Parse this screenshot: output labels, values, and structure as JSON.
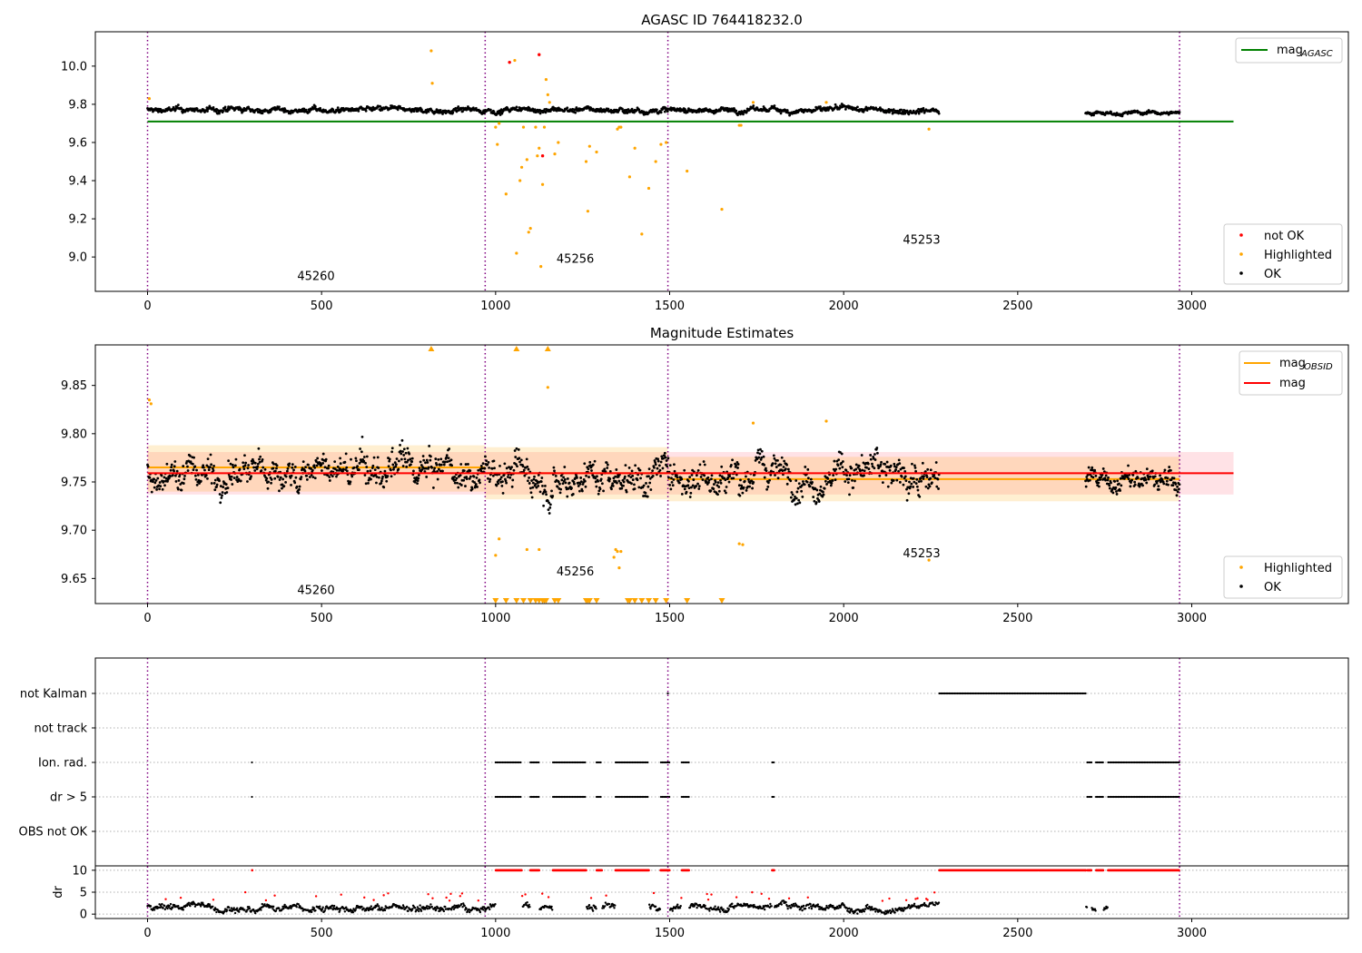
{
  "chart_data": [
    {
      "type": "scatter",
      "title": "AGASC ID 764418232.0",
      "xlim": [
        -150,
        3450
      ],
      "ylim": [
        8.82,
        10.18
      ],
      "xticks": [
        0,
        500,
        1000,
        1500,
        2000,
        2500,
        3000
      ],
      "yticks": [
        9.0,
        9.2,
        9.4,
        9.6,
        9.8,
        10.0
      ],
      "ytick_labels": [
        "9.0",
        "9.2",
        "9.4",
        "9.6",
        "9.8",
        "10.0"
      ],
      "obsid_boundaries": [
        0,
        970,
        1495,
        2965
      ],
      "obsid_labels": [
        {
          "text": "45260",
          "x": 430,
          "y": 8.88
        },
        {
          "text": "45256",
          "x": 1175,
          "y": 8.97
        },
        {
          "text": "45253",
          "x": 2170,
          "y": 9.07
        }
      ],
      "reference_line": {
        "name": "mag_AGASC",
        "y": 9.71,
        "x_range": [
          0,
          3120
        ],
        "color": "#008000"
      },
      "ok_series": {
        "name": "OK",
        "color": "#000000",
        "segments": [
          {
            "x_start": 0,
            "x_end": 2275,
            "level": 9.77,
            "spread": 0.018
          },
          {
            "x_start": 2695,
            "x_end": 2965,
            "level": 9.755,
            "spread": 0.012
          }
        ]
      },
      "highlighted": {
        "name": "Highlighted",
        "color": "#ffa500",
        "x": [
          5,
          815,
          818,
          1000,
          1005,
          1010,
          1030,
          1055,
          1060,
          1070,
          1075,
          1080,
          1090,
          1095,
          1100,
          1115,
          1120,
          1125,
          1130,
          1135,
          1140,
          1145,
          1150,
          1155,
          1170,
          1180,
          1260,
          1265,
          1270,
          1290,
          1350,
          1355,
          1360,
          1385,
          1400,
          1420,
          1440,
          1460,
          1475,
          1490,
          1550,
          1650,
          1700,
          1705,
          1740,
          1950,
          2245
        ],
        "y": [
          9.83,
          10.08,
          9.91,
          9.68,
          9.59,
          9.7,
          9.33,
          10.03,
          9.02,
          9.4,
          9.47,
          9.68,
          9.51,
          9.13,
          9.15,
          9.68,
          9.53,
          9.57,
          8.95,
          9.38,
          9.68,
          9.93,
          9.85,
          9.81,
          9.54,
          9.6,
          9.5,
          9.24,
          9.58,
          9.55,
          9.67,
          9.68,
          9.68,
          9.42,
          9.57,
          9.12,
          9.36,
          9.5,
          9.59,
          9.6,
          9.45,
          9.25,
          9.69,
          9.69,
          9.81,
          9.81,
          9.67
        ]
      },
      "not_ok": {
        "name": "not OK",
        "color": "#ff0000",
        "x": [
          1040,
          1125,
          1135
        ],
        "y": [
          10.02,
          10.06,
          9.53
        ]
      },
      "legend_lines": {
        "placement": "upper right",
        "entries": [
          "mag",
          "AGASC"
        ]
      },
      "legend_points": {
        "placement": "lower right",
        "entries": [
          "not OK",
          "Highlighted",
          "OK"
        ]
      }
    },
    {
      "type": "scatter",
      "title": "Magnitude Estimates",
      "xlim": [
        -150,
        3450
      ],
      "ylim": [
        9.624,
        9.892
      ],
      "xticks": [
        0,
        500,
        1000,
        1500,
        2000,
        2500,
        3000
      ],
      "yticks": [
        9.65,
        9.7,
        9.75,
        9.8,
        9.85
      ],
      "ytick_labels": [
        "9.65",
        "9.70",
        "9.75",
        "9.80",
        "9.85"
      ],
      "obsid_boundaries": [
        0,
        970,
        1495,
        2965
      ],
      "obsid_labels": [
        {
          "text": "45260",
          "x": 430,
          "y": 9.634
        },
        {
          "text": "45256",
          "x": 1175,
          "y": 9.653
        },
        {
          "text": "45253",
          "x": 2170,
          "y": 9.672
        }
      ],
      "mag_line": {
        "name": "mag",
        "y": 9.759,
        "band": [
          9.737,
          9.781
        ],
        "x_range": [
          0,
          3120
        ],
        "line_color": "#ff0000",
        "band_color": "#ffb6c1"
      },
      "mag_obsid": [
        {
          "x_range": [
            0,
            970
          ],
          "y": 9.765,
          "band": [
            9.74,
            9.788
          ],
          "color": "#ffa500"
        },
        {
          "x_range": [
            970,
            1495
          ],
          "y": 9.759,
          "band": [
            9.732,
            9.786
          ],
          "color": "#ffa500"
        },
        {
          "x_range": [
            1495,
            2965
          ],
          "y": 9.753,
          "band": [
            9.73,
            9.776
          ],
          "color": "#ffa500"
        }
      ],
      "ok_series": {
        "name": "OK",
        "color": "#000000",
        "segments": [
          {
            "x_start": 0,
            "x_end": 2275,
            "level": 9.76,
            "spread": 0.022
          },
          {
            "x_start": 2695,
            "x_end": 2965,
            "level": 9.75,
            "spread": 0.015
          }
        ]
      },
      "highlighted": {
        "name": "Highlighted",
        "color": "#ffa500",
        "x": [
          5,
          10,
          1000,
          1010,
          1090,
          1125,
          1150,
          1340,
          1345,
          1350,
          1355,
          1360,
          1700,
          1710,
          1740,
          1950,
          2245
        ],
        "y": [
          9.835,
          9.831,
          9.674,
          9.691,
          9.68,
          9.68,
          9.848,
          9.672,
          9.68,
          9.678,
          9.661,
          9.678,
          9.686,
          9.685,
          9.811,
          9.813,
          9.669
        ]
      },
      "clipped_high_x": [
        815,
        1060,
        1150
      ],
      "clipped_low_x": [
        1000,
        1030,
        1060,
        1080,
        1100,
        1115,
        1125,
        1135,
        1140,
        1145,
        1170,
        1180,
        1260,
        1265,
        1270,
        1290,
        1380,
        1385,
        1400,
        1420,
        1440,
        1460,
        1490,
        1550,
        1650
      ],
      "legend_lines": {
        "placement": "upper right",
        "entries": [
          "mag",
          "OBSID",
          "mag"
        ]
      },
      "legend_points": {
        "placement": "lower right",
        "entries": [
          "Highlighted",
          "OK"
        ]
      }
    },
    {
      "type": "scatter",
      "title": "",
      "xlim": [
        -150,
        3450
      ],
      "xticks": [
        0,
        500,
        1000,
        1500,
        2000,
        2500,
        3000
      ],
      "obsid_boundaries": [
        0,
        970,
        1495,
        2965
      ],
      "flag_rows": [
        {
          "label": "not Kalman",
          "ranges": [
            [
              1495,
              1496
            ],
            [
              2275,
              2695
            ]
          ]
        },
        {
          "label": "not track",
          "ranges": []
        },
        {
          "label": "Ion. rad.",
          "ranges": [
            [
              300,
              301
            ],
            [
              1000,
              1075
            ],
            [
              1100,
              1125
            ],
            [
              1165,
              1260
            ],
            [
              1290,
              1305
            ],
            [
              1345,
              1440
            ],
            [
              1475,
              1500
            ],
            [
              1535,
              1555
            ],
            [
              1795,
              1800
            ],
            [
              2700,
              2712
            ],
            [
              2725,
              2745
            ],
            [
              2760,
              2965
            ]
          ]
        },
        {
          "label": "dr > 5",
          "ranges": [
            [
              300,
              301
            ],
            [
              1000,
              1075
            ],
            [
              1100,
              1125
            ],
            [
              1165,
              1260
            ],
            [
              1290,
              1305
            ],
            [
              1345,
              1440
            ],
            [
              1475,
              1500
            ],
            [
              1535,
              1555
            ],
            [
              1795,
              1800
            ],
            [
              2700,
              2712
            ],
            [
              2725,
              2745
            ],
            [
              2760,
              2965
            ]
          ]
        },
        {
          "label": "OBS not OK",
          "ranges": []
        }
      ],
      "dr_panel": {
        "ylabel": "dr",
        "yticks": [
          0,
          5,
          10
        ],
        "ylim": [
          -1,
          11
        ],
        "clip_value": 10,
        "ok_color": "#000000",
        "bad_color": "#ff0000"
      }
    }
  ]
}
